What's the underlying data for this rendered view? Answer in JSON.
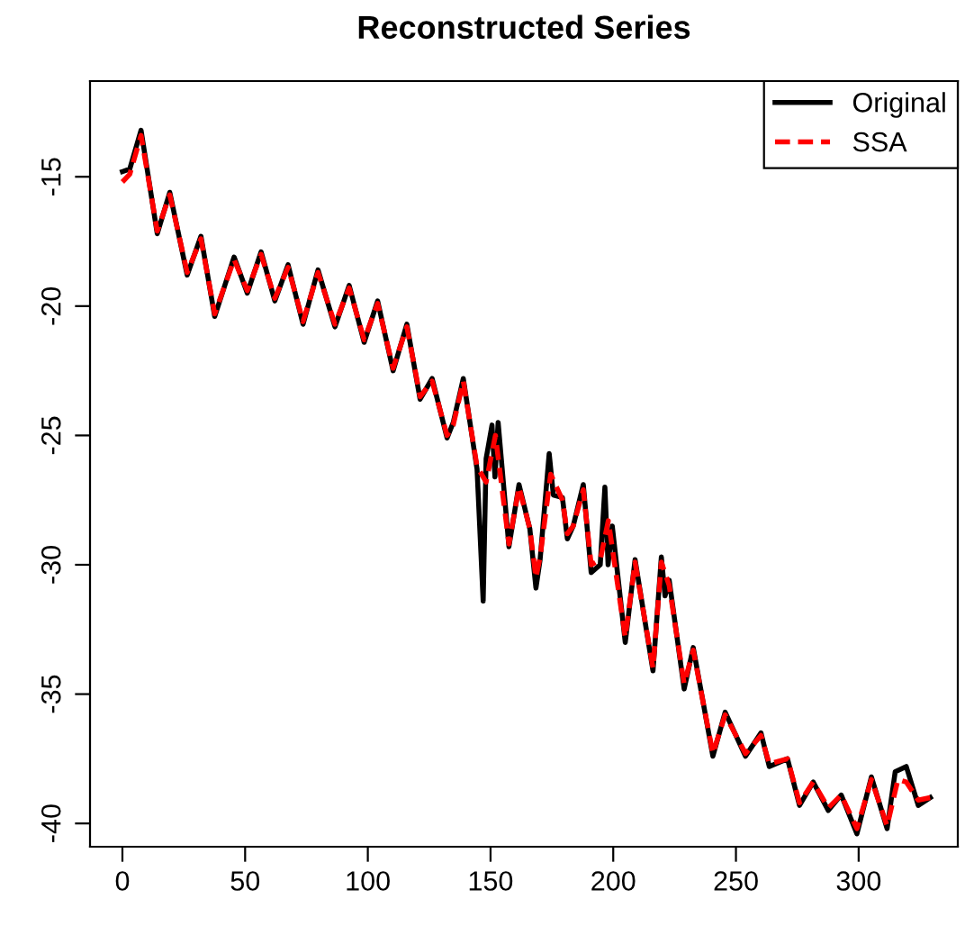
{
  "chart_data": {
    "type": "line",
    "title": "Reconstructed Series",
    "xlim": [
      -13.2,
      340.4
    ],
    "ylim": [
      -40.9,
      -11.3
    ],
    "xticks": [
      0,
      50,
      100,
      150,
      200,
      250,
      300
    ],
    "yticks": [
      -40,
      -35,
      -30,
      -25,
      -20,
      -15
    ],
    "grid": false,
    "legend": "top right",
    "marker": "none",
    "series": [
      {
        "name": "Original",
        "color": "#000000",
        "line_style": "solid",
        "x": [
          0,
          3,
          7.6,
          14.2,
          19.3,
          26.4,
          32,
          37.6,
          45.5,
          50.9,
          56.5,
          62.1,
          67.5,
          73.6,
          79.7,
          86.6,
          92.4,
          98.5,
          104,
          110.3,
          115.9,
          121.3,
          126.2,
          132.3,
          134.8,
          138.9,
          144.5,
          147,
          148.2,
          150.6,
          151.8,
          153.1,
          157.5,
          161.6,
          166,
          168.5,
          170.2,
          173.9,
          175.6,
          179.3,
          181.3,
          183.7,
          187.8,
          191,
          194.7,
          196.6,
          197.9,
          199.6,
          204.9,
          208.9,
          216.2,
          219.6,
          221.1,
          222.8,
          228.9,
          232.6,
          240.6,
          245.6,
          253.9,
          260.2,
          263.6,
          271,
          275.9,
          281.5,
          287.6,
          292.9,
          299.3,
          305.2,
          311.6,
          314.9,
          319.4,
          324.3,
          329.2
        ],
        "values": [
          -14.8,
          -14.7,
          -13.2,
          -17.2,
          -15.6,
          -18.8,
          -17.3,
          -20.4,
          -18.1,
          -19.5,
          -17.9,
          -19.8,
          -18.4,
          -20.7,
          -18.6,
          -20.8,
          -19.2,
          -21.4,
          -19.8,
          -22.5,
          -20.7,
          -23.6,
          -22.8,
          -25.1,
          -24.5,
          -22.8,
          -26.3,
          -31.4,
          -25.9,
          -24.6,
          -26.6,
          -24.5,
          -29.3,
          -26.9,
          -28.6,
          -30.9,
          -29.8,
          -25.7,
          -27.3,
          -27.4,
          -29.0,
          -28.5,
          -26.9,
          -30.3,
          -30.0,
          -27.0,
          -30.0,
          -28.5,
          -33.0,
          -29.8,
          -34.1,
          -29.7,
          -31.2,
          -30.6,
          -34.8,
          -33.2,
          -37.4,
          -35.7,
          -37.4,
          -36.5,
          -37.8,
          -37.5,
          -39.3,
          -38.4,
          -39.5,
          -38.9,
          -40.4,
          -38.2,
          -40.2,
          -38.0,
          -37.8,
          -39.3,
          -39.0
        ]
      },
      {
        "name": "SSA",
        "color": "#ff0000",
        "line_style": "dashed",
        "x": [
          0,
          3,
          7.6,
          14.2,
          19.3,
          26.4,
          32,
          37.6,
          45.5,
          50.9,
          56.5,
          62.1,
          67.5,
          73.6,
          79.7,
          86.6,
          92.4,
          98.5,
          104,
          110.3,
          115.9,
          121.3,
          126.2,
          132.3,
          134.8,
          138.9,
          144.5,
          148.2,
          152,
          157.5,
          161.6,
          166,
          168.5,
          170.2,
          174.5,
          179.3,
          181.3,
          183.7,
          187.8,
          191,
          194.7,
          198,
          204.9,
          208.9,
          216.2,
          219.6,
          222.8,
          228.9,
          232.6,
          240.6,
          245.6,
          253.9,
          260.2,
          263.6,
          271,
          275.9,
          281.5,
          287.6,
          292.9,
          299.3,
          305.2,
          311.6,
          316,
          319.4,
          324.3,
          329.2
        ],
        "values": [
          -15.2,
          -14.9,
          -13.4,
          -17.1,
          -15.7,
          -18.7,
          -17.4,
          -20.3,
          -18.2,
          -19.4,
          -18.0,
          -19.7,
          -18.5,
          -20.6,
          -18.7,
          -20.7,
          -19.3,
          -21.3,
          -19.9,
          -22.4,
          -20.8,
          -23.5,
          -22.9,
          -25.0,
          -24.6,
          -22.9,
          -26.2,
          -26.8,
          -25.0,
          -29.2,
          -27.0,
          -28.6,
          -30.5,
          -29.7,
          -26.5,
          -27.5,
          -28.8,
          -28.5,
          -27.1,
          -30.0,
          -29.8,
          -28.3,
          -32.8,
          -29.9,
          -34.0,
          -29.9,
          -30.8,
          -34.6,
          -33.3,
          -37.3,
          -35.8,
          -37.3,
          -36.6,
          -37.7,
          -37.5,
          -39.2,
          -38.4,
          -39.4,
          -38.9,
          -40.2,
          -38.3,
          -40.1,
          -38.3,
          -38.4,
          -39.1,
          -39.0
        ]
      }
    ]
  }
}
